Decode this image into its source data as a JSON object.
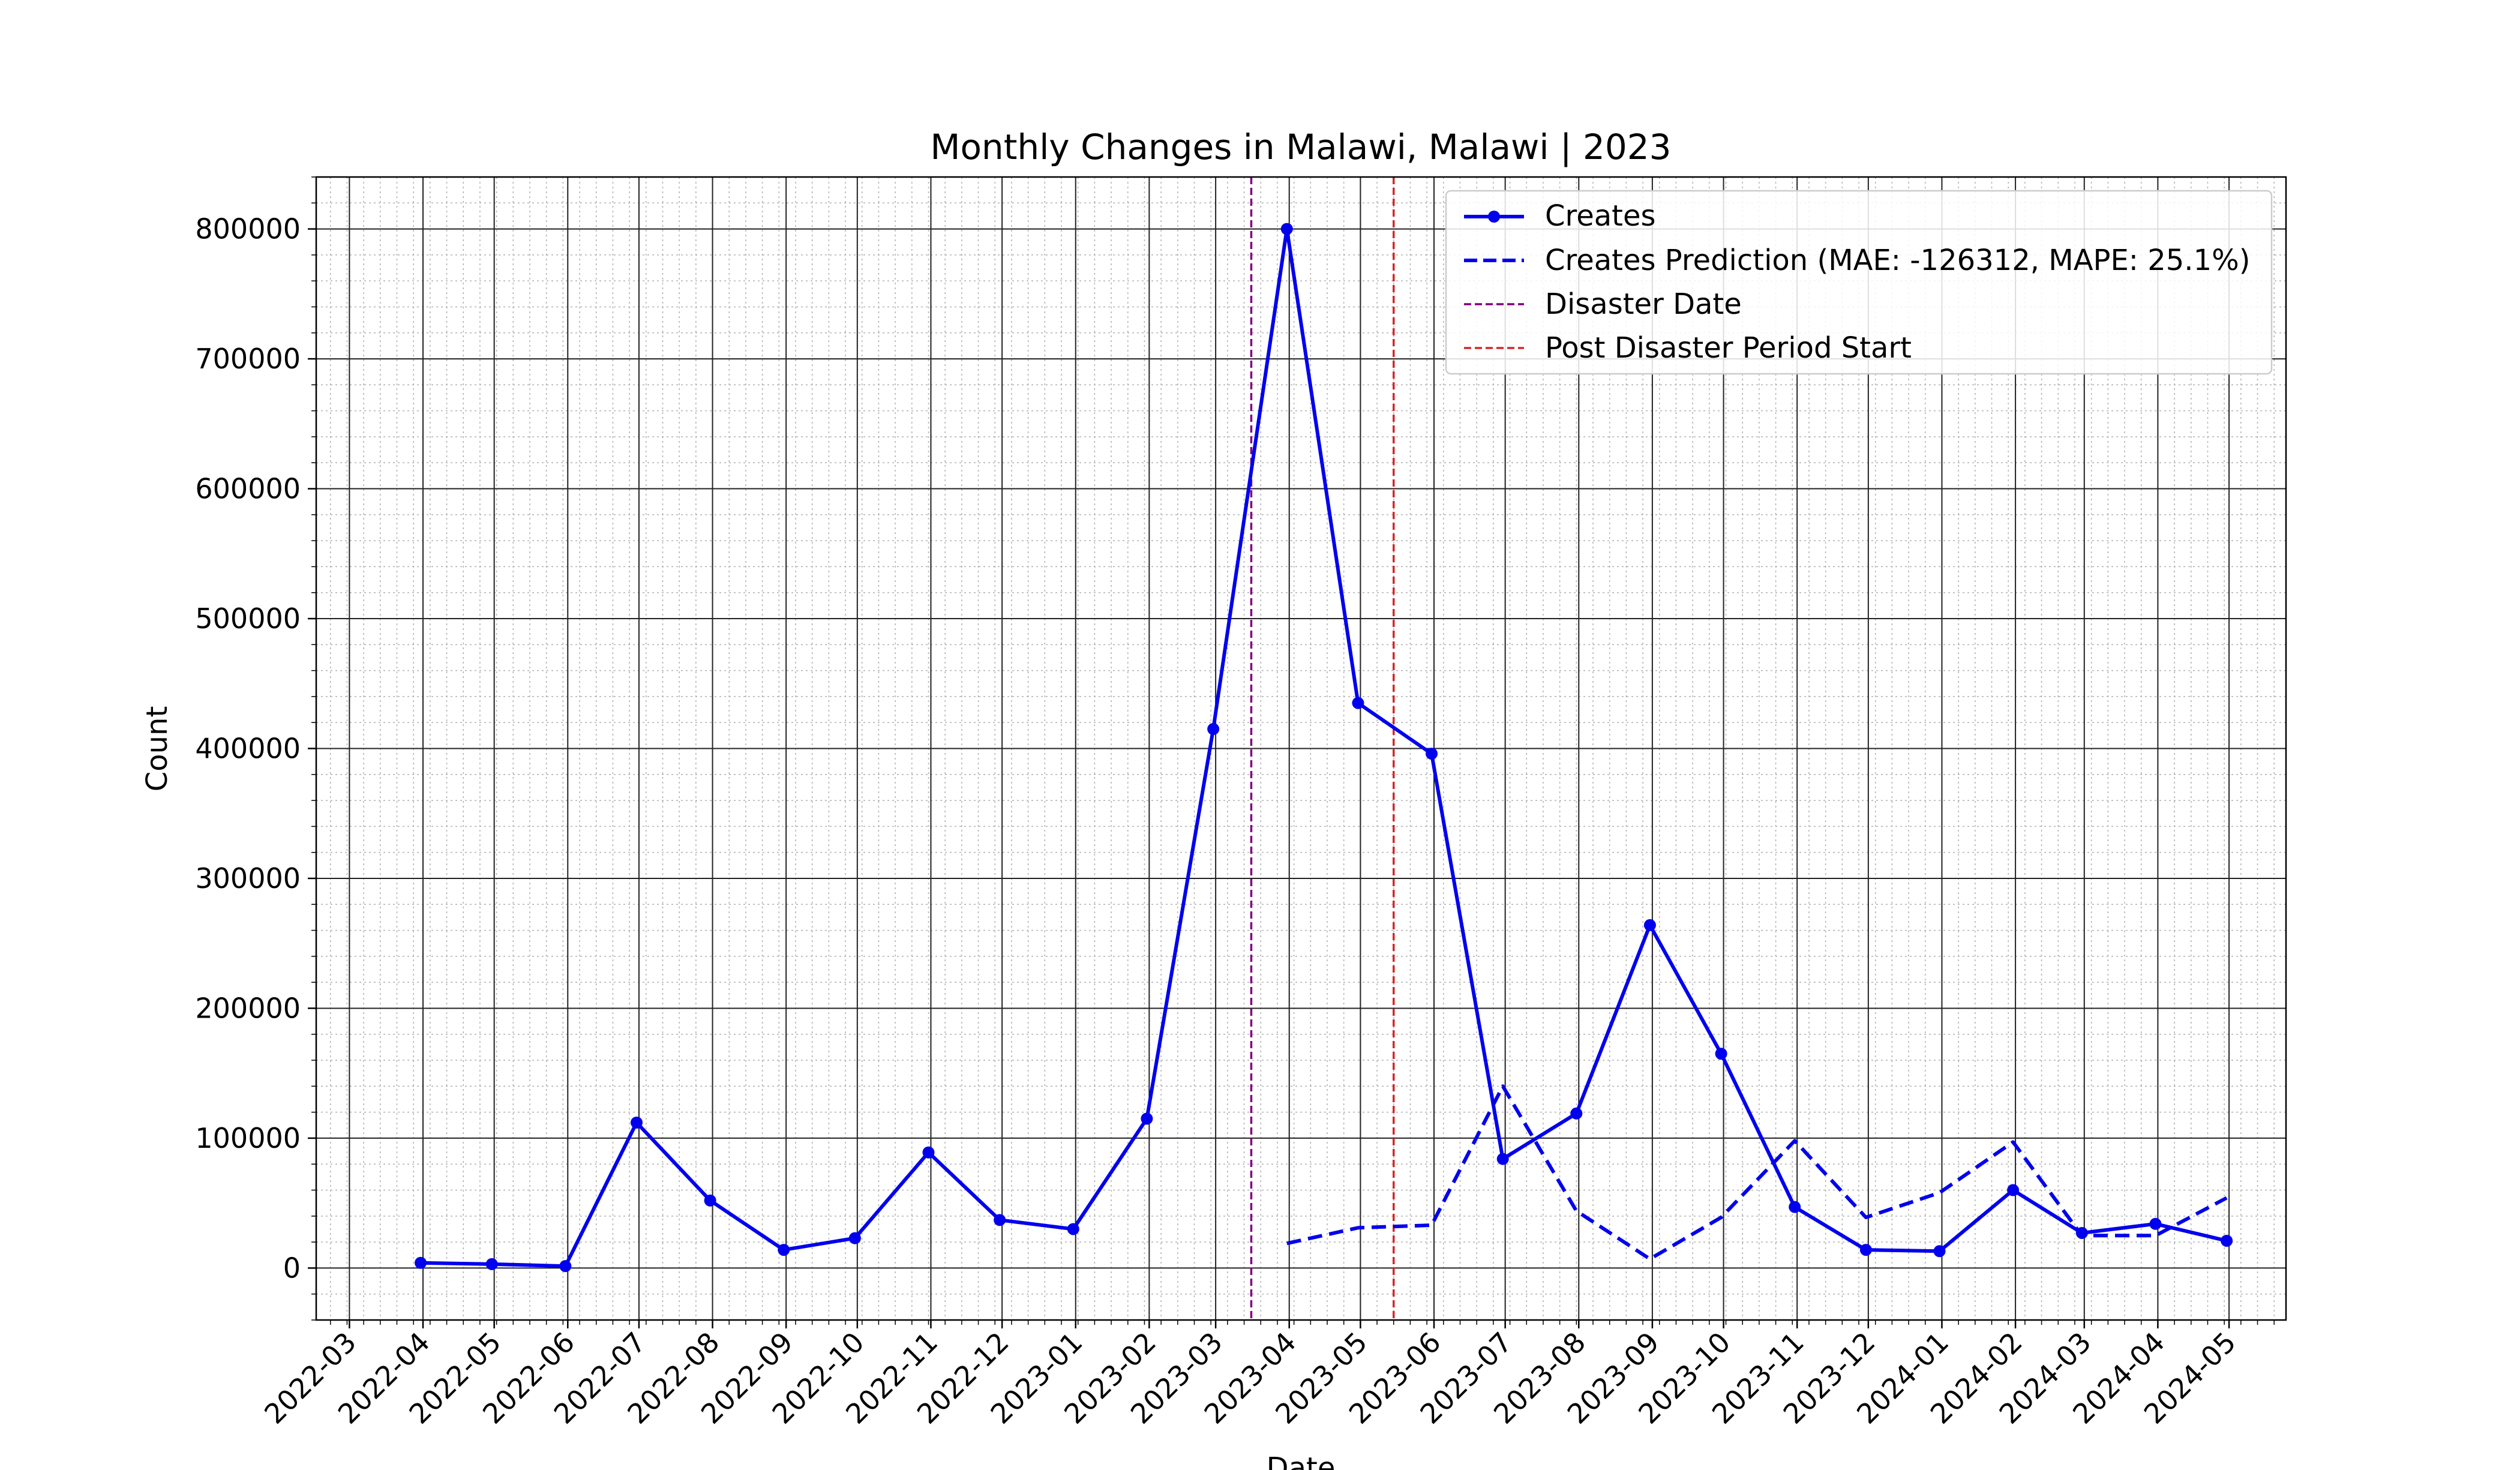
{
  "chart_data": {
    "type": "line",
    "title": "Monthly Changes in Malawi, Malawi | 2023",
    "xlabel": "Date",
    "ylabel": "Count",
    "ylim": [
      -40000,
      840000
    ],
    "xlim": [
      "2022-02-15",
      "2024-05-25"
    ],
    "grid": true,
    "legend_position": "top-right",
    "y_ticks": [
      0,
      100000,
      200000,
      300000,
      400000,
      500000,
      600000,
      700000,
      800000
    ],
    "y_tick_labels": [
      "0",
      "100000",
      "200000",
      "300000",
      "400000",
      "500000",
      "600000",
      "700000",
      "800000"
    ],
    "x_ticks": [
      "2022-03-01",
      "2022-04-01",
      "2022-05-01",
      "2022-06-01",
      "2022-07-01",
      "2022-08-01",
      "2022-09-01",
      "2022-10-01",
      "2022-11-01",
      "2022-12-01",
      "2023-01-01",
      "2023-02-01",
      "2023-03-01",
      "2023-04-01",
      "2023-05-01",
      "2023-06-01",
      "2023-07-01",
      "2023-08-01",
      "2023-09-01",
      "2023-10-01",
      "2023-11-01",
      "2023-12-01",
      "2024-01-01",
      "2024-02-01",
      "2024-03-01",
      "2024-04-01",
      "2024-05-01"
    ],
    "x_tick_labels": [
      "2022-03",
      "2022-04",
      "2022-05",
      "2022-06",
      "2022-07",
      "2022-08",
      "2022-09",
      "2022-10",
      "2022-11",
      "2022-12",
      "2023-01",
      "2023-02",
      "2023-03",
      "2023-04",
      "2023-05",
      "2023-06",
      "2023-07",
      "2023-08",
      "2023-09",
      "2023-10",
      "2023-11",
      "2023-12",
      "2024-01",
      "2024-02",
      "2024-03",
      "2024-04",
      "2024-05"
    ],
    "series": [
      {
        "name": "Creates",
        "color": "#0000ee",
        "style": "solid",
        "markers": true,
        "x": [
          "2022-03-31",
          "2022-04-30",
          "2022-05-31",
          "2022-06-30",
          "2022-07-31",
          "2022-08-31",
          "2022-09-30",
          "2022-10-31",
          "2022-11-30",
          "2022-12-31",
          "2023-01-31",
          "2023-02-28",
          "2023-03-31",
          "2023-04-30",
          "2023-05-31",
          "2023-06-30",
          "2023-07-31",
          "2023-08-31",
          "2023-09-30",
          "2023-10-31",
          "2023-11-30",
          "2023-12-31",
          "2024-01-31",
          "2024-02-29",
          "2024-03-31",
          "2024-04-30"
        ],
        "values": [
          4000,
          3000,
          1500,
          112000,
          52000,
          14000,
          23000,
          89000,
          37000,
          30000,
          115000,
          415000,
          800000,
          435000,
          396000,
          84000,
          119000,
          264000,
          165000,
          47000,
          14000,
          13000,
          60000,
          27000,
          34000,
          21000
        ]
      },
      {
        "name": "Creates Prediction (MAE: -126312, MAPE: 25.1%)",
        "color": "#0000ee",
        "style": "dashed",
        "markers": false,
        "x": [
          "2023-03-31",
          "2023-04-30",
          "2023-05-31",
          "2023-06-30",
          "2023-07-31",
          "2023-08-31",
          "2023-09-30",
          "2023-10-31",
          "2023-11-30",
          "2023-12-31",
          "2024-01-31",
          "2024-02-29",
          "2024-03-31",
          "2024-04-30"
        ],
        "values": [
          19000,
          31000,
          33000,
          140000,
          44000,
          7000,
          39000,
          98000,
          39000,
          58000,
          97000,
          25000,
          25000,
          54000
        ]
      }
    ],
    "vlines": [
      {
        "name": "Disaster Date",
        "x": "2023-03-16",
        "color": "#800080"
      },
      {
        "name": "Post Disaster Period Start",
        "x": "2023-05-15",
        "color": "#d62728"
      }
    ]
  }
}
